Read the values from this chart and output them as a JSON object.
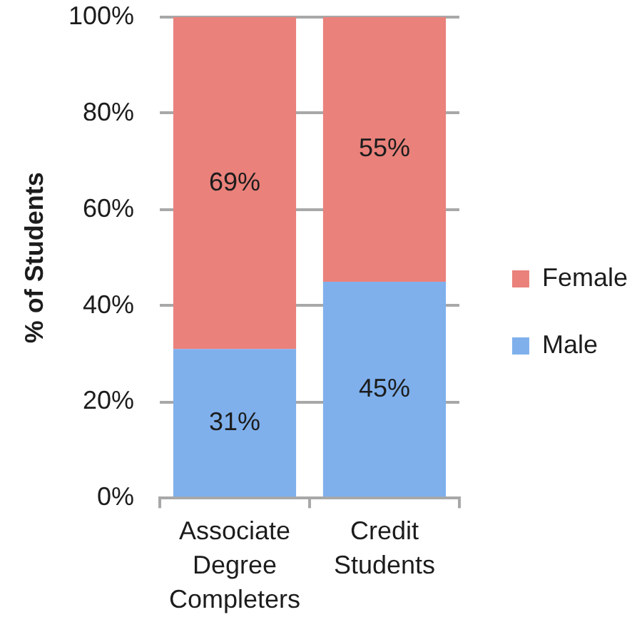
{
  "chart_data": {
    "type": "bar",
    "ylabel": "% of Students",
    "categories": [
      "Associate Degree Completers",
      "Credit Students"
    ],
    "series": [
      {
        "name": "Male",
        "color": "#7fb0ec",
        "values": [
          31,
          45
        ],
        "value_labels": [
          "31%",
          "45%"
        ]
      },
      {
        "name": "Female",
        "color": "#ea817b",
        "values": [
          69,
          55
        ],
        "value_labels": [
          "69%",
          "55%"
        ]
      }
    ],
    "stacked": true,
    "ylim": [
      0,
      100
    ],
    "yticks": [
      {
        "value": 0,
        "label": "0%"
      },
      {
        "value": 20,
        "label": "20%"
      },
      {
        "value": 40,
        "label": "40%"
      },
      {
        "value": 60,
        "label": "60%"
      },
      {
        "value": 80,
        "label": "80%"
      },
      {
        "value": 100,
        "label": "100%"
      }
    ],
    "grid": "y",
    "legend": "right"
  }
}
